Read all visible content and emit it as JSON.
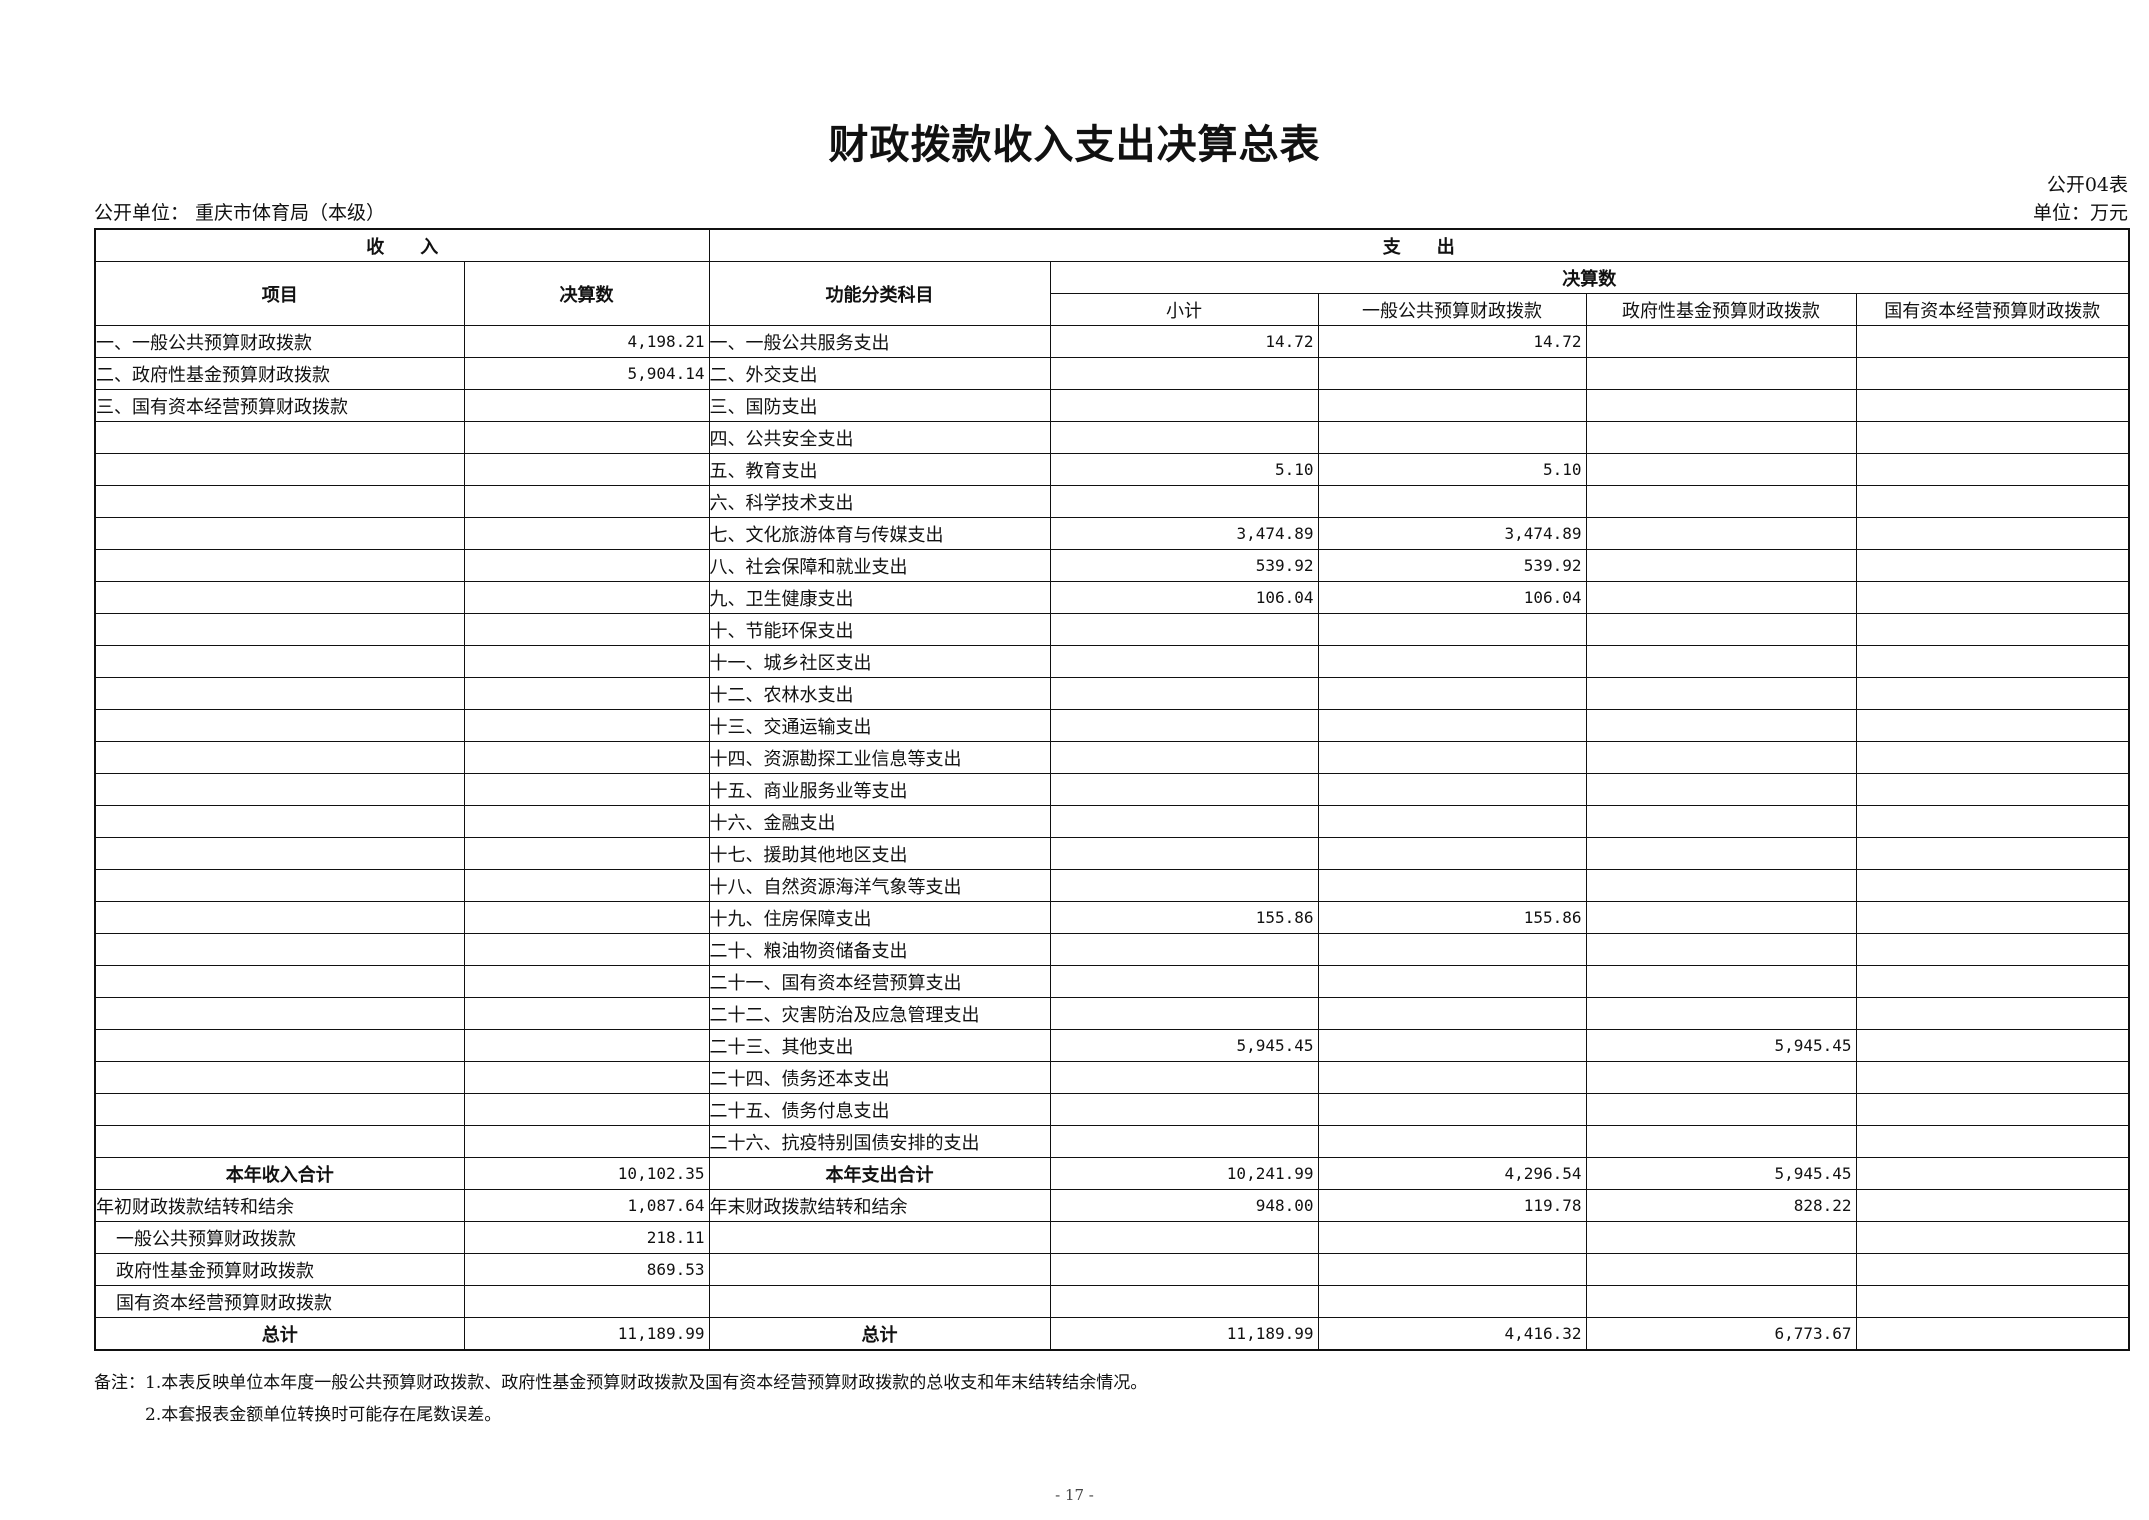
{
  "title": "财政拨款收入支出决算总表",
  "form_no": "公开04表",
  "unit_left": "公开单位：  重庆市体育局（本级）",
  "unit_right": "单位：万元",
  "headers": {
    "income": "收　　入",
    "expense": "支　　出",
    "item": "项目",
    "amount": "决算数",
    "func_item": "功能分类科目",
    "final": "决算数",
    "subtotal": "小计",
    "general": "一般公共预算财政拨款",
    "fund": "政府性基金预算财政拨款",
    "state": "国有资本经营预算财政拨款"
  },
  "rows": [
    {
      "type": "normal",
      "income_item": "一、一般公共预算财政拨款",
      "income_amount": "4,198.21",
      "expense_item": "一、一般公共服务支出",
      "subtotal": "14.72",
      "general": "14.72",
      "fund": "",
      "state": ""
    },
    {
      "type": "normal",
      "income_item": "二、政府性基金预算财政拨款",
      "income_amount": "5,904.14",
      "expense_item": "二、外交支出",
      "subtotal": "",
      "general": "",
      "fund": "",
      "state": ""
    },
    {
      "type": "normal",
      "income_item": "三、国有资本经营预算财政拨款",
      "income_amount": "",
      "expense_item": "三、国防支出",
      "subtotal": "",
      "general": "",
      "fund": "",
      "state": ""
    },
    {
      "type": "normal",
      "income_item": "",
      "income_amount": "",
      "expense_item": "四、公共安全支出",
      "subtotal": "",
      "general": "",
      "fund": "",
      "state": ""
    },
    {
      "type": "normal",
      "income_item": "",
      "income_amount": "",
      "expense_item": "五、教育支出",
      "subtotal": "5.10",
      "general": "5.10",
      "fund": "",
      "state": ""
    },
    {
      "type": "normal",
      "income_item": "",
      "income_amount": "",
      "expense_item": "六、科学技术支出",
      "subtotal": "",
      "general": "",
      "fund": "",
      "state": ""
    },
    {
      "type": "normal",
      "income_item": "",
      "income_amount": "",
      "expense_item": "七、文化旅游体育与传媒支出",
      "subtotal": "3,474.89",
      "general": "3,474.89",
      "fund": "",
      "state": ""
    },
    {
      "type": "normal",
      "income_item": "",
      "income_amount": "",
      "expense_item": "八、社会保障和就业支出",
      "subtotal": "539.92",
      "general": "539.92",
      "fund": "",
      "state": ""
    },
    {
      "type": "normal",
      "income_item": "",
      "income_amount": "",
      "expense_item": "九、卫生健康支出",
      "subtotal": "106.04",
      "general": "106.04",
      "fund": "",
      "state": ""
    },
    {
      "type": "normal",
      "income_item": "",
      "income_amount": "",
      "expense_item": "十、节能环保支出",
      "subtotal": "",
      "general": "",
      "fund": "",
      "state": ""
    },
    {
      "type": "normal",
      "income_item": "",
      "income_amount": "",
      "expense_item": "十一、城乡社区支出",
      "subtotal": "",
      "general": "",
      "fund": "",
      "state": ""
    },
    {
      "type": "normal",
      "income_item": "",
      "income_amount": "",
      "expense_item": "十二、农林水支出",
      "subtotal": "",
      "general": "",
      "fund": "",
      "state": ""
    },
    {
      "type": "normal",
      "income_item": "",
      "income_amount": "",
      "expense_item": "十三、交通运输支出",
      "subtotal": "",
      "general": "",
      "fund": "",
      "state": ""
    },
    {
      "type": "normal",
      "income_item": "",
      "income_amount": "",
      "expense_item": "十四、资源勘探工业信息等支出",
      "subtotal": "",
      "general": "",
      "fund": "",
      "state": ""
    },
    {
      "type": "normal",
      "income_item": "",
      "income_amount": "",
      "expense_item": "十五、商业服务业等支出",
      "subtotal": "",
      "general": "",
      "fund": "",
      "state": ""
    },
    {
      "type": "normal",
      "income_item": "",
      "income_amount": "",
      "expense_item": "十六、金融支出",
      "subtotal": "",
      "general": "",
      "fund": "",
      "state": ""
    },
    {
      "type": "normal",
      "income_item": "",
      "income_amount": "",
      "expense_item": "十七、援助其他地区支出",
      "subtotal": "",
      "general": "",
      "fund": "",
      "state": ""
    },
    {
      "type": "normal",
      "income_item": "",
      "income_amount": "",
      "expense_item": "十八、自然资源海洋气象等支出",
      "subtotal": "",
      "general": "",
      "fund": "",
      "state": ""
    },
    {
      "type": "normal",
      "income_item": "",
      "income_amount": "",
      "expense_item": "十九、住房保障支出",
      "subtotal": "155.86",
      "general": "155.86",
      "fund": "",
      "state": ""
    },
    {
      "type": "normal",
      "income_item": "",
      "income_amount": "",
      "expense_item": "二十、粮油物资储备支出",
      "subtotal": "",
      "general": "",
      "fund": "",
      "state": ""
    },
    {
      "type": "normal",
      "income_item": "",
      "income_amount": "",
      "expense_item": "二十一、国有资本经营预算支出",
      "subtotal": "",
      "general": "",
      "fund": "",
      "state": ""
    },
    {
      "type": "normal",
      "income_item": "",
      "income_amount": "",
      "expense_item": "二十二、灾害防治及应急管理支出",
      "subtotal": "",
      "general": "",
      "fund": "",
      "state": ""
    },
    {
      "type": "normal",
      "income_item": "",
      "income_amount": "",
      "expense_item": "二十三、其他支出",
      "subtotal": "5,945.45",
      "general": "",
      "fund": "5,945.45",
      "state": ""
    },
    {
      "type": "normal",
      "income_item": "",
      "income_amount": "",
      "expense_item": "二十四、债务还本支出",
      "subtotal": "",
      "general": "",
      "fund": "",
      "state": ""
    },
    {
      "type": "normal",
      "income_item": "",
      "income_amount": "",
      "expense_item": "二十五、债务付息支出",
      "subtotal": "",
      "general": "",
      "fund": "",
      "state": ""
    },
    {
      "type": "normal",
      "income_item": "",
      "income_amount": "",
      "expense_item": "二十六、抗疫特别国债安排的支出",
      "subtotal": "",
      "general": "",
      "fund": "",
      "state": ""
    },
    {
      "type": "total",
      "income_item": "本年收入合计",
      "income_amount": "10,102.35",
      "expense_item": "本年支出合计",
      "subtotal": "10,241.99",
      "general": "4,296.54",
      "fund": "5,945.45",
      "state": ""
    },
    {
      "type": "normal",
      "income_item": "年初财政拨款结转和结余",
      "income_amount": "1,087.64",
      "expense_item": "年末财政拨款结转和结余",
      "subtotal": "948.00",
      "general": "119.78",
      "fund": "828.22",
      "state": ""
    },
    {
      "type": "indent",
      "income_item": "一般公共预算财政拨款",
      "income_amount": "218.11",
      "expense_item": "",
      "subtotal": "",
      "general": "",
      "fund": "",
      "state": ""
    },
    {
      "type": "indent",
      "income_item": "政府性基金预算财政拨款",
      "income_amount": "869.53",
      "expense_item": "",
      "subtotal": "",
      "general": "",
      "fund": "",
      "state": ""
    },
    {
      "type": "indent",
      "income_item": "国有资本经营预算财政拨款",
      "income_amount": "",
      "expense_item": "",
      "subtotal": "",
      "general": "",
      "fund": "",
      "state": ""
    },
    {
      "type": "total",
      "income_item": "总计",
      "income_amount": "11,189.99",
      "expense_item": "总计",
      "subtotal": "11,189.99",
      "general": "4,416.32",
      "fund": "6,773.67",
      "state": ""
    }
  ],
  "notes": [
    "备注：1.本表反映单位本年度一般公共预算财政拨款、政府性基金预算财政拨款及国有资本经营预算财政拨款的总收支和年末结转结余情况。",
    "　　　2.本套报表金额单位转换时可能存在尾数误差。"
  ],
  "page_no": "- 17 -"
}
